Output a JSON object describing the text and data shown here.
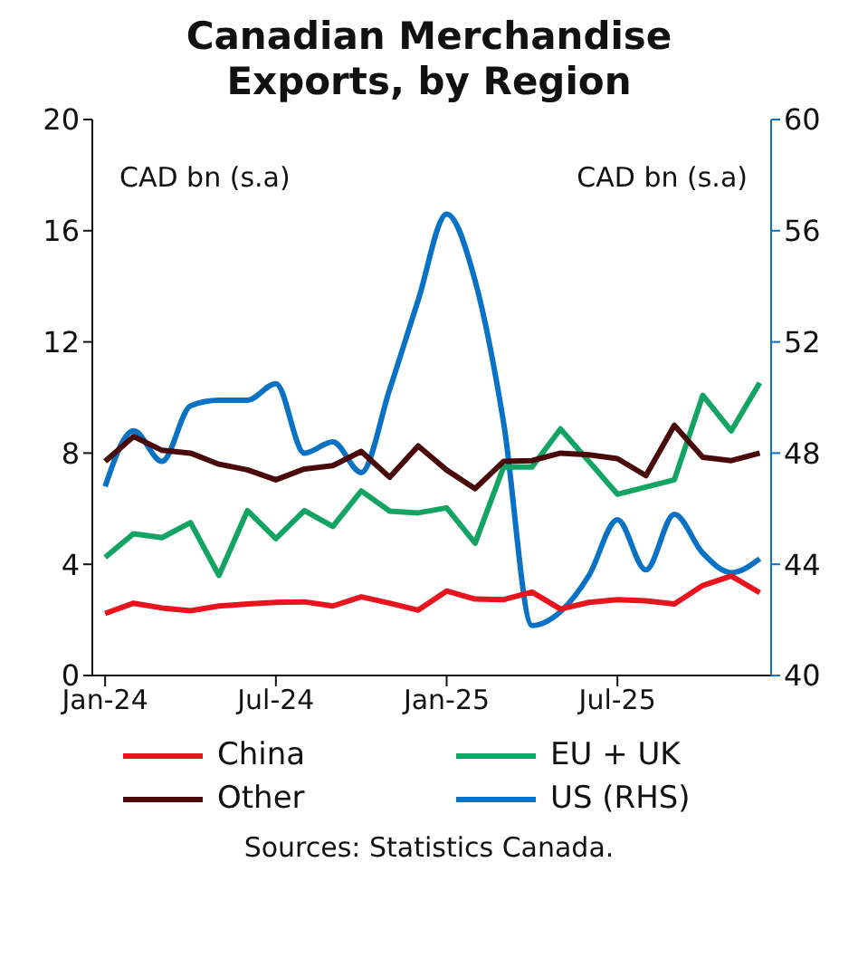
{
  "chart_data": {
    "type": "line",
    "title": "Canadian Merchandise Exports, by Region",
    "ylabel": "CAD bn (s.a)",
    "y2label": "CAD bn (s.a)",
    "categories": [
      "Jan-24",
      null,
      null,
      null,
      null,
      null,
      "Jul-24",
      null,
      null,
      null,
      null,
      null,
      "Jan-25",
      null,
      null,
      null,
      null,
      null,
      "Jul-25",
      null,
      null,
      null,
      null,
      null
    ],
    "series": [
      {
        "name": "China",
        "color": "#e8141e",
        "values": [
          2.23,
          2.6,
          2.43,
          2.33,
          2.5,
          2.57,
          2.63,
          2.65,
          2.5,
          2.83,
          2.6,
          2.35,
          3.04,
          2.75,
          2.73,
          3.0,
          2.39,
          2.63,
          2.73,
          2.69,
          2.57,
          3.24,
          3.58,
          2.98
        ]
      },
      {
        "name": "EU + UK",
        "color": "#13a463",
        "values": [
          4.25,
          5.1,
          4.96,
          5.5,
          3.6,
          5.93,
          4.92,
          5.93,
          5.36,
          6.64,
          5.91,
          5.85,
          6.03,
          4.76,
          7.5,
          7.5,
          8.87,
          7.7,
          6.52,
          6.78,
          7.04,
          10.08,
          8.8,
          10.53
        ]
      },
      {
        "name": "Other",
        "color": "#4a0a0a",
        "values": [
          7.7,
          8.6,
          8.1,
          8.0,
          7.6,
          7.4,
          7.04,
          7.43,
          7.55,
          8.06,
          7.13,
          8.26,
          7.39,
          6.72,
          7.7,
          7.73,
          8.0,
          7.94,
          7.8,
          7.19,
          9.0,
          7.85,
          7.73,
          8.0
        ]
      },
      {
        "name": "US (RHS)",
        "color": "#0a72c4",
        "axis": "y2",
        "values": [
          46.8,
          48.8,
          47.7,
          49.7,
          49.9,
          49.9,
          50.5,
          48.0,
          48.4,
          47.3,
          50.3,
          53.5,
          56.6,
          54.2,
          49.1,
          41.8,
          42.3,
          43.6,
          45.6,
          43.8,
          45.8,
          44.4,
          43.7,
          44.2
        ]
      }
    ],
    "ylim": [
      0,
      20
    ],
    "yticks": [
      0,
      4,
      8,
      12,
      16,
      20
    ],
    "y2lim": [
      40,
      60
    ],
    "y2ticks": [
      40,
      44,
      48,
      52,
      56,
      60
    ],
    "legend": "bottom",
    "marker": "none",
    "line_style": "solid",
    "annotations": [
      "Sources: Statistics Canada."
    ]
  }
}
